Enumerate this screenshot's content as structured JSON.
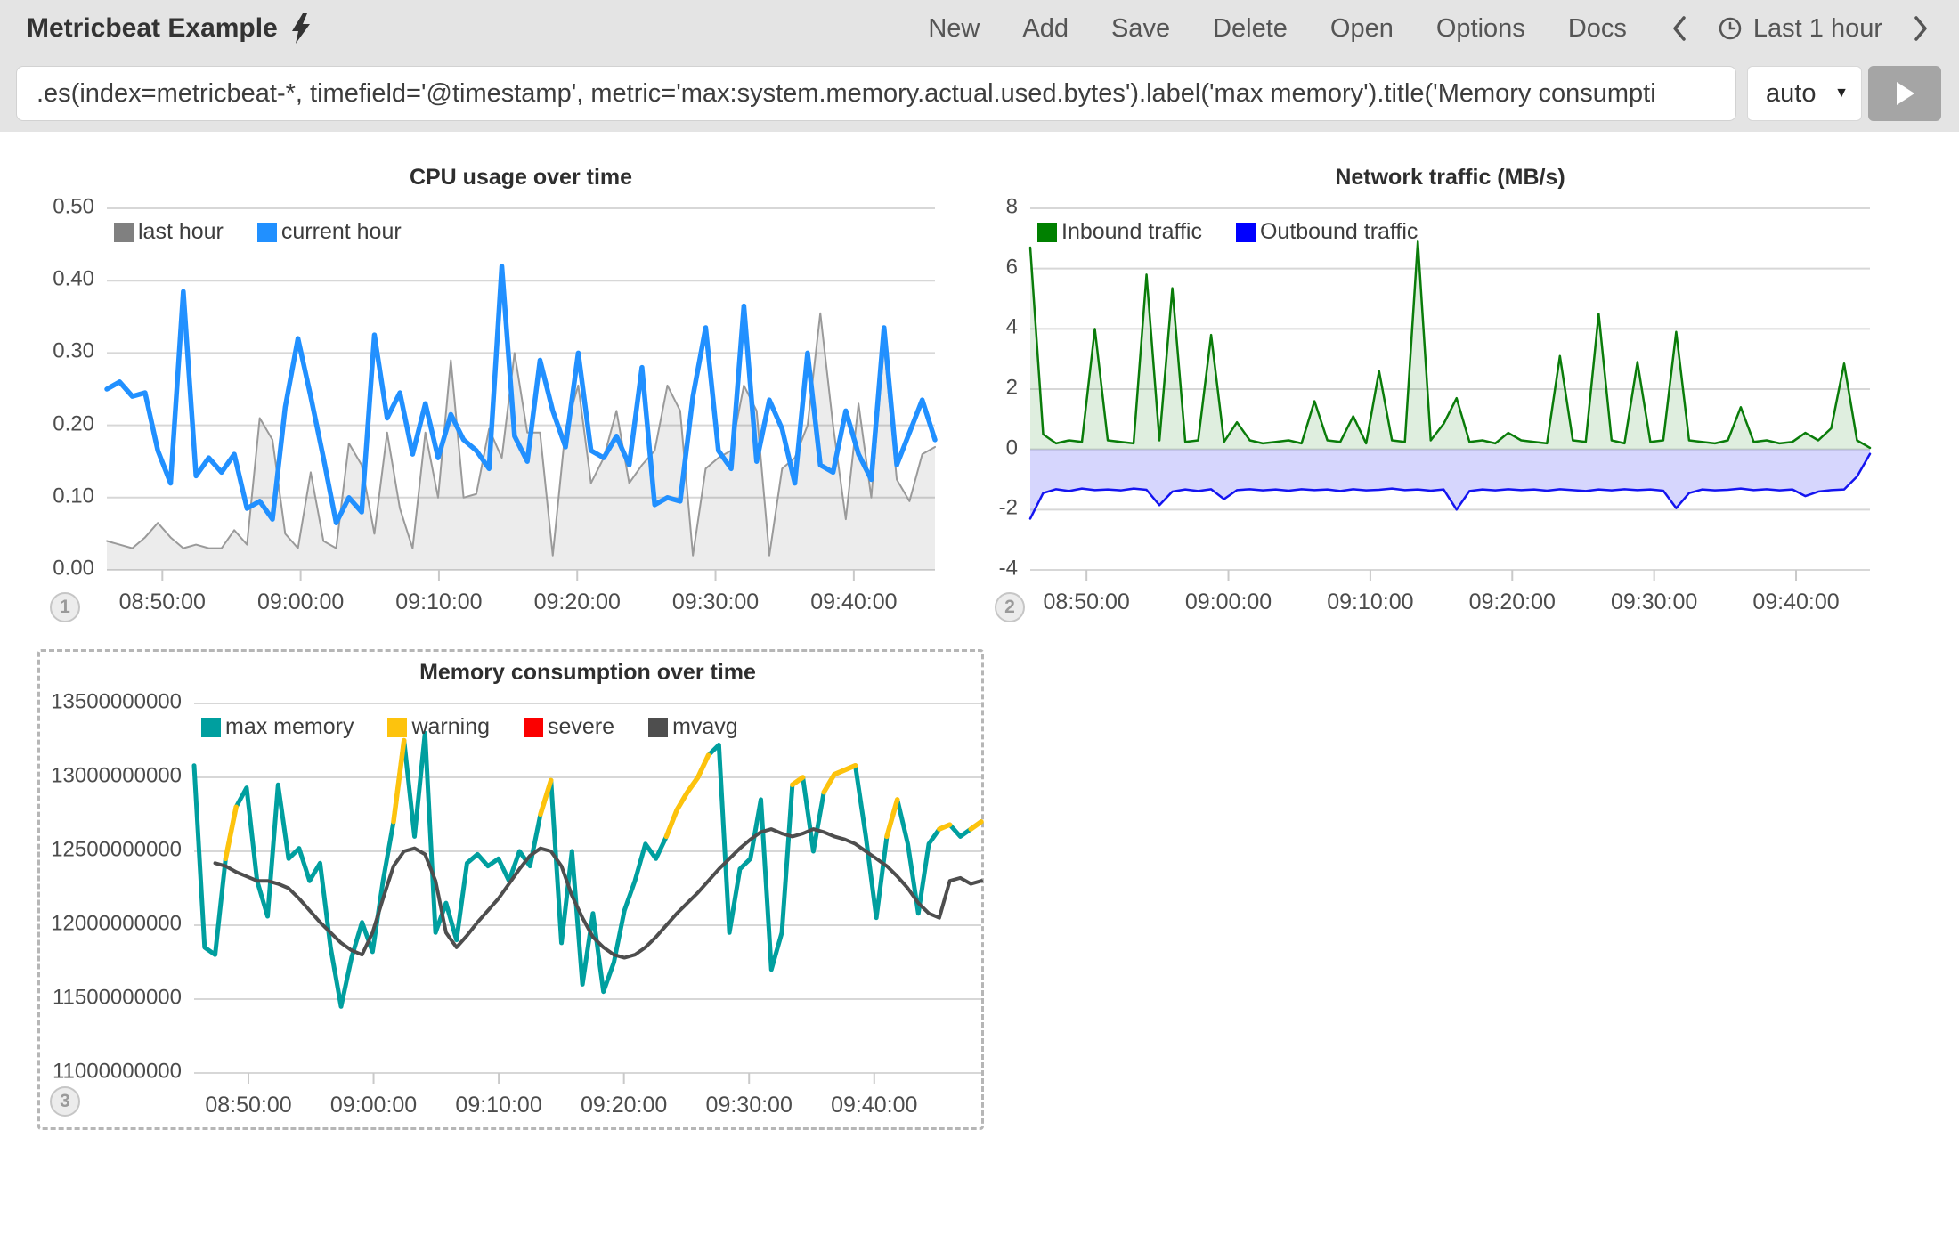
{
  "colors": {
    "grid": "#d7d7d7",
    "tick": "#c9c9c9",
    "topbar": "#e4e4e4",
    "accent_blue": "#2190ff",
    "teal": "#009f9f",
    "warning_yellow": "#fdc30d",
    "severe_red": "#fb0000",
    "inbound_green": "#008000",
    "outbound_blue": "#0000ff"
  },
  "header": {
    "title": "Metricbeat Example",
    "bolt_icon": "lightning-bolt",
    "menu": [
      {
        "label": "New"
      },
      {
        "label": "Add"
      },
      {
        "label": "Save"
      },
      {
        "label": "Delete"
      },
      {
        "label": "Open"
      },
      {
        "label": "Options"
      },
      {
        "label": "Docs"
      }
    ],
    "time_picker": {
      "prev_icon": "chevron-left",
      "clock_icon": "clock",
      "label": "Last 1 hour",
      "next_icon": "chevron-right"
    }
  },
  "query_bar": {
    "value": ".es(index=metricbeat-*, timefield='@timestamp', metric='max:system.memory.actual.used.bytes').label('max memory').title('Memory consumpti",
    "interval": {
      "value": "auto",
      "caret_icon": "chevron-down"
    },
    "run_icon": "play"
  },
  "panels": [
    {
      "badge": "1"
    },
    {
      "badge": "2"
    },
    {
      "badge": "3"
    }
  ],
  "chart_data": [
    {
      "type": "line",
      "title": "CPU usage over time",
      "x_tick_labels": [
        "08:50:00",
        "09:00:00",
        "09:10:00",
        "09:20:00",
        "09:30:00",
        "09:40:00"
      ],
      "y_ticks": {
        "values": [
          0,
          0.1,
          0.2,
          0.3,
          0.4,
          0.5
        ],
        "labels": [
          "0.00",
          "0.10",
          "0.20",
          "0.30",
          "0.40",
          "0.50"
        ]
      },
      "ylim": [
        0,
        0.5
      ],
      "grid": true,
      "legend_position": "top-left",
      "layout": {
        "tick_start_frac": 0.067,
        "tick_step_frac": 0.167
      },
      "series": [
        {
          "name": "last hour",
          "color": "#808080",
          "line_color": "#9a9a9a",
          "fill": "rgba(0,0,0,0.075)",
          "mode": "area",
          "baseline": 0,
          "width": 2,
          "values": [
            0.04,
            0.035,
            0.03,
            0.045,
            0.065,
            0.045,
            0.03,
            0.035,
            0.03,
            0.03,
            0.055,
            0.035,
            0.21,
            0.18,
            0.05,
            0.03,
            0.135,
            0.04,
            0.03,
            0.175,
            0.145,
            0.05,
            0.19,
            0.085,
            0.03,
            0.19,
            0.1,
            0.29,
            0.1,
            0.105,
            0.195,
            0.155,
            0.3,
            0.19,
            0.19,
            0.02,
            0.195,
            0.255,
            0.12,
            0.155,
            0.22,
            0.12,
            0.145,
            0.165,
            0.255,
            0.22,
            0.02,
            0.14,
            0.155,
            0.165,
            0.255,
            0.22,
            0.02,
            0.14,
            0.155,
            0.2,
            0.355,
            0.2,
            0.07,
            0.23,
            0.1,
            0.31,
            0.125,
            0.095,
            0.16,
            0.17
          ]
        },
        {
          "name": "current hour",
          "color": "#2190ff",
          "mode": "line",
          "width": 5.5,
          "values": [
            0.25,
            0.26,
            0.24,
            0.245,
            0.165,
            0.12,
            0.385,
            0.13,
            0.155,
            0.135,
            0.16,
            0.085,
            0.095,
            0.07,
            0.225,
            0.32,
            0.24,
            0.155,
            0.065,
            0.1,
            0.08,
            0.325,
            0.21,
            0.245,
            0.16,
            0.23,
            0.155,
            0.215,
            0.18,
            0.165,
            0.14,
            0.42,
            0.185,
            0.15,
            0.29,
            0.22,
            0.17,
            0.3,
            0.165,
            0.155,
            0.185,
            0.145,
            0.28,
            0.09,
            0.1,
            0.095,
            0.24,
            0.335,
            0.165,
            0.14,
            0.365,
            0.15,
            0.235,
            0.195,
            0.12,
            0.3,
            0.145,
            0.135,
            0.22,
            0.16,
            0.125,
            0.335,
            0.145,
            0.19,
            0.235,
            0.18
          ]
        }
      ]
    },
    {
      "type": "area",
      "title": "Network traffic (MB/s)",
      "x_tick_labels": [
        "08:50:00",
        "09:00:00",
        "09:10:00",
        "09:20:00",
        "09:30:00",
        "09:40:00"
      ],
      "y_ticks": {
        "values": [
          -4,
          -2,
          0,
          2,
          4,
          6,
          8
        ],
        "labels": [
          "-4",
          "-2",
          "0",
          "2",
          "4",
          "6",
          "8"
        ]
      },
      "ylim": [
        -4,
        8
      ],
      "grid": true,
      "legend_position": "top-left",
      "layout": {
        "tick_start_frac": 0.067,
        "tick_step_frac": 0.169
      },
      "series": [
        {
          "name": "Inbound traffic",
          "color": "#008000",
          "line_color": "#0a7c0a",
          "fill": "rgba(10,124,10,0.13)",
          "mode": "area",
          "baseline": 0,
          "width": 2.5,
          "values": [
            6.7,
            0.5,
            0.2,
            0.3,
            0.25,
            4.0,
            0.3,
            0.25,
            0.2,
            5.8,
            0.3,
            5.35,
            0.25,
            0.3,
            3.8,
            0.25,
            0.9,
            0.3,
            0.2,
            0.25,
            0.3,
            0.2,
            1.6,
            0.3,
            0.25,
            1.1,
            0.2,
            2.6,
            0.3,
            0.25,
            6.9,
            0.3,
            0.85,
            1.7,
            0.25,
            0.3,
            0.2,
            0.55,
            0.3,
            0.25,
            0.2,
            3.1,
            0.3,
            0.25,
            4.5,
            0.3,
            0.2,
            2.9,
            0.25,
            0.3,
            3.9,
            0.3,
            0.25,
            0.2,
            0.3,
            1.4,
            0.25,
            0.3,
            0.2,
            0.25,
            0.55,
            0.3,
            0.7,
            2.85,
            0.3,
            0.05
          ]
        },
        {
          "name": "Outbound traffic",
          "color": "#0000ff",
          "line_color": "#1414f0",
          "fill": "rgba(70,70,245,0.22)",
          "mode": "area",
          "baseline": 0,
          "width": 2.5,
          "values": [
            -2.3,
            -1.45,
            -1.32,
            -1.38,
            -1.3,
            -1.35,
            -1.33,
            -1.36,
            -1.3,
            -1.34,
            -1.85,
            -1.4,
            -1.33,
            -1.38,
            -1.32,
            -1.65,
            -1.35,
            -1.32,
            -1.36,
            -1.33,
            -1.37,
            -1.32,
            -1.35,
            -1.33,
            -1.38,
            -1.32,
            -1.36,
            -1.34,
            -1.3,
            -1.35,
            -1.33,
            -1.37,
            -1.33,
            -2.0,
            -1.38,
            -1.33,
            -1.36,
            -1.32,
            -1.35,
            -1.33,
            -1.37,
            -1.32,
            -1.35,
            -1.38,
            -1.33,
            -1.36,
            -1.32,
            -1.35,
            -1.33,
            -1.37,
            -1.95,
            -1.45,
            -1.33,
            -1.36,
            -1.34,
            -1.3,
            -1.35,
            -1.32,
            -1.36,
            -1.33,
            -1.55,
            -1.4,
            -1.35,
            -1.33,
            -0.9,
            -0.15
          ]
        }
      ]
    },
    {
      "type": "line",
      "title": "Memory consumption over time",
      "x_tick_labels": [
        "08:50:00",
        "09:00:00",
        "09:10:00",
        "09:20:00",
        "09:30:00",
        "09:40:00"
      ],
      "y_ticks": {
        "values": [
          11000000000,
          11500000000,
          12000000000,
          12500000000,
          13000000000,
          13500000000
        ],
        "labels": [
          "11000000000",
          "11500000000",
          "12000000000",
          "12500000000",
          "13000000000",
          "13500000000"
        ]
      },
      "ylim": [
        11000000000,
        13500000000
      ],
      "grid": true,
      "legend_position": "top-left",
      "selected_panel": true,
      "layout": {
        "tick_start_frac": 0.069,
        "tick_step_frac": 0.159
      },
      "series": [
        {
          "name": "max memory",
          "color": "#009f9f",
          "mode": "line",
          "width": 5,
          "values": [
            13080000000,
            11850000000,
            11800000000,
            12450000000,
            12800000000,
            12930000000,
            12300000000,
            12060000000,
            12950000000,
            12450000000,
            12520000000,
            12300000000,
            12420000000,
            11850000000,
            11450000000,
            11780000000,
            12020000000,
            11820000000,
            12300000000,
            12700000000,
            13250000000,
            12600000000,
            13300000000,
            11950000000,
            12150000000,
            11900000000,
            12420000000,
            12480000000,
            12400000000,
            12450000000,
            12300000000,
            12500000000,
            12400000000,
            12750000000,
            12980000000,
            11880000000,
            12500000000,
            11600000000,
            12080000000,
            11550000000,
            11750000000,
            12100000000,
            12300000000,
            12550000000,
            12450000000,
            12600000000,
            12780000000,
            12900000000,
            13000000000,
            13150000000,
            13220000000,
            11950000000,
            12380000000,
            12450000000,
            12850000000,
            11700000000,
            11950000000,
            12950000000,
            13000000000,
            12500000000,
            12900000000,
            13020000000,
            13050000000,
            13080000000,
            12600000000,
            12050000000,
            12600000000,
            12850000000,
            12550000000,
            12080000000,
            12550000000,
            12650000000,
            12680000000,
            12600000000,
            12650000000,
            12700000000
          ]
        },
        {
          "name": "warning",
          "color": "#fdc30d",
          "mode": "mask-overlay",
          "of": 0,
          "width": 5.5,
          "mask": [
            3,
            4,
            19,
            20,
            33,
            34,
            45,
            46,
            47,
            48,
            49,
            57,
            58,
            60,
            61,
            62,
            63,
            66,
            67,
            71,
            72,
            74,
            75
          ]
        },
        {
          "name": "severe",
          "color": "#fb0000",
          "mode": "legend-only"
        },
        {
          "name": "mvavg",
          "color": "#4e4e4e",
          "mode": "line",
          "width": 4,
          "values": [
            null,
            null,
            12420000000,
            12400000000,
            12360000000,
            12330000000,
            12300000000,
            12300000000,
            12280000000,
            12250000000,
            12180000000,
            12100000000,
            12020000000,
            11950000000,
            11880000000,
            11830000000,
            11800000000,
            11950000000,
            12180000000,
            12400000000,
            12500000000,
            12520000000,
            12480000000,
            12300000000,
            11950000000,
            11850000000,
            11930000000,
            12020000000,
            12100000000,
            12180000000,
            12280000000,
            12380000000,
            12470000000,
            12520000000,
            12500000000,
            12400000000,
            12200000000,
            12050000000,
            11920000000,
            11850000000,
            11800000000,
            11780000000,
            11800000000,
            11850000000,
            11920000000,
            12000000000,
            12080000000,
            12150000000,
            12220000000,
            12300000000,
            12380000000,
            12450000000,
            12520000000,
            12580000000,
            12630000000,
            12650000000,
            12620000000,
            12600000000,
            12620000000,
            12650000000,
            12630000000,
            12600000000,
            12580000000,
            12550000000,
            12500000000,
            12450000000,
            12400000000,
            12330000000,
            12250000000,
            12150000000,
            12080000000,
            12050000000,
            12300000000,
            12320000000,
            12280000000,
            12300000000
          ]
        }
      ]
    }
  ]
}
